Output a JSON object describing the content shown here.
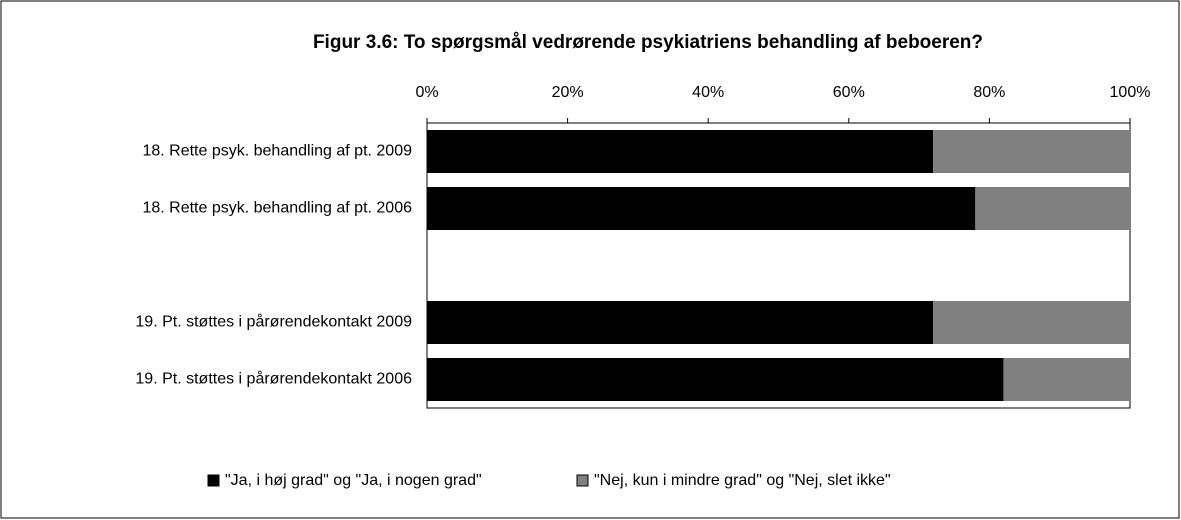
{
  "chart_data": {
    "type": "stacked_barh",
    "title": "Figur 3.6: To spørgsmål vedrørende psykiatriens behandling af beboeren?",
    "categories": [
      "18. Rette psyk. behandling af pt. 2009",
      "18. Rette psyk. behandling af pt. 2006",
      null,
      "19. Pt. støttes i pårørendekontakt 2009",
      "19. Pt. støttes i pårørendekontakt 2006"
    ],
    "series": [
      {
        "name": "\"Ja, i høj grad\" og \"Ja, i nogen grad\"",
        "color": "#000000",
        "values": [
          72,
          78,
          null,
          72,
          82
        ]
      },
      {
        "name": "\"Nej, kun i mindre grad\" og \"Nej, slet ikke\"",
        "color": "#808080",
        "values": [
          28,
          22,
          null,
          28,
          18
        ]
      }
    ],
    "xlim": [
      0,
      100
    ],
    "xticks": [
      {
        "value": 0,
        "label": "0%"
      },
      {
        "value": 20,
        "label": "20%"
      },
      {
        "value": 40,
        "label": "40%"
      },
      {
        "value": 60,
        "label": "60%"
      },
      {
        "value": 80,
        "label": "80%"
      },
      {
        "value": 100,
        "label": "100%"
      }
    ],
    "legend": "bottom"
  }
}
